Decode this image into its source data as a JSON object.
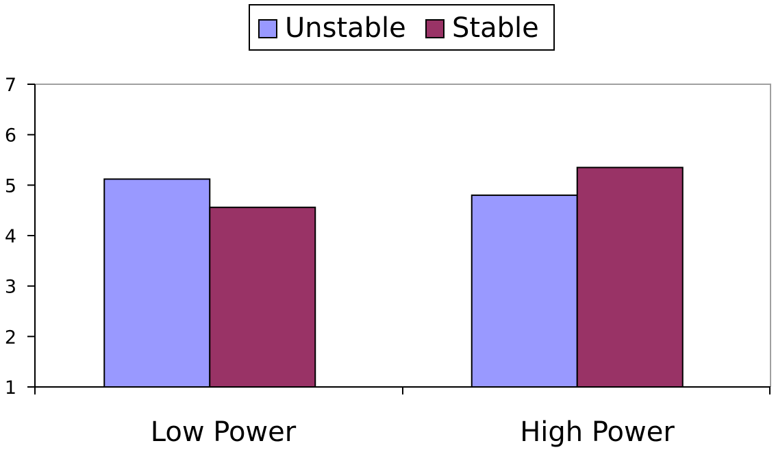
{
  "chart_data": {
    "type": "bar",
    "categories": [
      "Low Power",
      "High Power"
    ],
    "series": [
      {
        "name": "Unstable",
        "color": "#9999ff",
        "values": [
          5.12,
          4.8
        ]
      },
      {
        "name": "Stable",
        "color": "#993366",
        "values": [
          4.56,
          5.35
        ]
      }
    ],
    "title": "",
    "xlabel": "",
    "ylabel": "",
    "ylim": [
      1,
      7
    ],
    "yticks": [
      "1",
      "2",
      "3",
      "4",
      "5",
      "6",
      "7"
    ],
    "grid": false,
    "legend_position": "top-center"
  }
}
